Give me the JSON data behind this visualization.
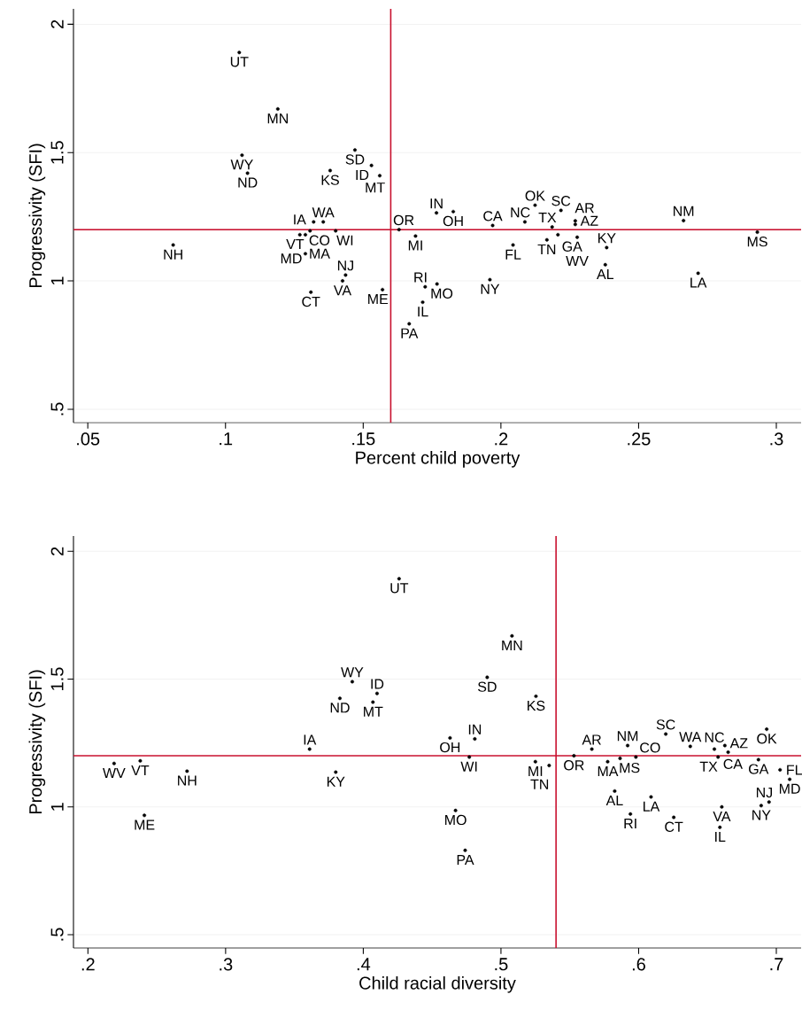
{
  "chart_data": [
    {
      "type": "scatter",
      "xlabel": "Percent child poverty",
      "ylabel": "Progressivity (SFI)",
      "color": "#000000",
      "marker": "circle",
      "grid": "y",
      "xlim": [
        0.0448,
        0.309
      ],
      "ylim": [
        0.448,
        2.06
      ],
      "xticks": [
        {
          "value": 0.05,
          "label": ".05"
        },
        {
          "value": 0.1,
          "label": ".1"
        },
        {
          "value": 0.15,
          "label": ".15"
        },
        {
          "value": 0.2,
          "label": ".2"
        },
        {
          "value": 0.25,
          "label": ".25"
        },
        {
          "value": 0.3,
          "label": ".3"
        }
      ],
      "yticks": [
        {
          "value": 0.5,
          "label": ".5"
        },
        1,
        1.5,
        2
      ],
      "ref_lines": [
        {
          "axis": "x",
          "value": 0.16,
          "color": "#c8102e"
        },
        {
          "axis": "y",
          "value": 1.2,
          "color": "#c8102e"
        }
      ],
      "value_labels": [
        "UT",
        "MN",
        "WY",
        "ND",
        "SD",
        "KS",
        "ID",
        "MT",
        "NH",
        "WA",
        "IA",
        "CO",
        "WI",
        "VT",
        "MA",
        "MD",
        "CT",
        "VA",
        "NJ",
        "ME",
        "OR",
        "MI",
        "PA",
        "IL",
        "RI",
        "MO",
        "IN",
        "OH",
        "NY",
        "CA",
        "FL",
        "NC",
        "OK",
        "SC",
        "TN",
        "TX",
        "GA",
        "AZ",
        "AR",
        "WV",
        "KY",
        "AL",
        "NM",
        "LA",
        "MS"
      ],
      "x": [
        0.105,
        0.119,
        0.106,
        0.108,
        0.147,
        0.138,
        0.153,
        0.156,
        0.081,
        0.1355,
        0.132,
        0.1307,
        0.14,
        0.127,
        0.129,
        0.129,
        0.131,
        0.1425,
        0.1436,
        0.157,
        0.163,
        0.169,
        0.1667,
        0.1716,
        0.1725,
        0.1768,
        0.1766,
        0.1827,
        0.196,
        0.197,
        0.2044,
        0.2087,
        0.2124,
        0.2218,
        0.2167,
        0.2186,
        0.2207,
        0.227,
        0.227,
        0.2277,
        0.2384,
        0.2379,
        0.2663,
        0.2716,
        0.2931
      ],
      "values": [
        1.89,
        1.67,
        1.49,
        1.42,
        1.51,
        1.43,
        1.45,
        1.41,
        1.14,
        1.23,
        1.23,
        1.195,
        1.195,
        1.18,
        1.18,
        1.106,
        0.956,
        1.0,
        1.023,
        0.966,
        1.2,
        1.175,
        0.833,
        0.917,
        0.977,
        0.988,
        1.265,
        1.27,
        1.005,
        1.216,
        1.14,
        1.23,
        1.295,
        1.275,
        1.16,
        1.21,
        1.18,
        1.234,
        1.22,
        1.17,
        1.13,
        1.063,
        1.235,
        1.03,
        1.19
      ]
    },
    {
      "type": "scatter",
      "xlabel": "Child racial diversity",
      "ylabel": "Progressivity (SFI)",
      "color": "#000000",
      "marker": "circle",
      "grid": "y",
      "xlim": [
        0.1895,
        0.718
      ],
      "ylim": [
        0.448,
        2.06
      ],
      "xticks": [
        {
          "value": 0.2,
          "label": ".2"
        },
        {
          "value": 0.3,
          "label": ".3"
        },
        {
          "value": 0.4,
          "label": ".4"
        },
        {
          "value": 0.5,
          "label": ".5"
        },
        {
          "value": 0.6,
          "label": ".6"
        },
        {
          "value": 0.7,
          "label": ".7"
        }
      ],
      "yticks": [
        {
          "value": 0.5,
          "label": ".5"
        },
        1,
        1.5,
        2
      ],
      "ref_lines": [
        {
          "axis": "x",
          "value": 0.54,
          "color": "#c8102e"
        },
        {
          "axis": "y",
          "value": 1.2,
          "color": "#c8102e"
        }
      ],
      "value_labels": [
        "UT",
        "WY",
        "ND",
        "ID",
        "MT",
        "IA",
        "KY",
        "NH",
        "WV",
        "VT",
        "ME",
        "MN",
        "SD",
        "KS",
        "OH",
        "IN",
        "WI",
        "MO",
        "MI",
        "TN",
        "OR",
        "AR",
        "MA",
        "NM",
        "MS",
        "CO",
        "SC",
        "WA",
        "NC",
        "AZ",
        "CA",
        "TX",
        "OK",
        "GA",
        "FL",
        "MD",
        "NJ",
        "NY",
        "VA",
        "IL",
        "AL",
        "LA",
        "RI",
        "CT",
        "PA"
      ],
      "x": [
        0.426,
        0.392,
        0.383,
        0.41,
        0.407,
        0.361,
        0.38,
        0.272,
        0.219,
        0.238,
        0.241,
        0.508,
        0.49,
        0.5254,
        0.463,
        0.481,
        0.477,
        0.467,
        0.525,
        0.535,
        0.553,
        0.566,
        0.5775,
        0.592,
        0.5865,
        0.598,
        0.6197,
        0.6375,
        0.655,
        0.6626,
        0.665,
        0.6577,
        0.693,
        0.687,
        0.7027,
        0.7097,
        0.6947,
        0.689,
        0.6604,
        0.659,
        0.5826,
        0.609,
        0.594,
        0.6255,
        0.474
      ],
      "values": [
        1.893,
        1.49,
        1.425,
        1.444,
        1.41,
        1.226,
        1.136,
        1.14,
        1.17,
        1.18,
        0.967,
        1.669,
        1.507,
        1.433,
        1.27,
        1.266,
        1.195,
        0.986,
        1.177,
        1.162,
        1.2,
        1.226,
        1.177,
        1.24,
        1.19,
        1.195,
        1.285,
        1.237,
        1.226,
        1.24,
        1.214,
        1.195,
        1.304,
        1.185,
        1.145,
        1.108,
        1.019,
        1.005,
        1.0,
        0.92,
        1.062,
        1.039,
        0.972,
        0.959,
        0.83
      ]
    }
  ]
}
